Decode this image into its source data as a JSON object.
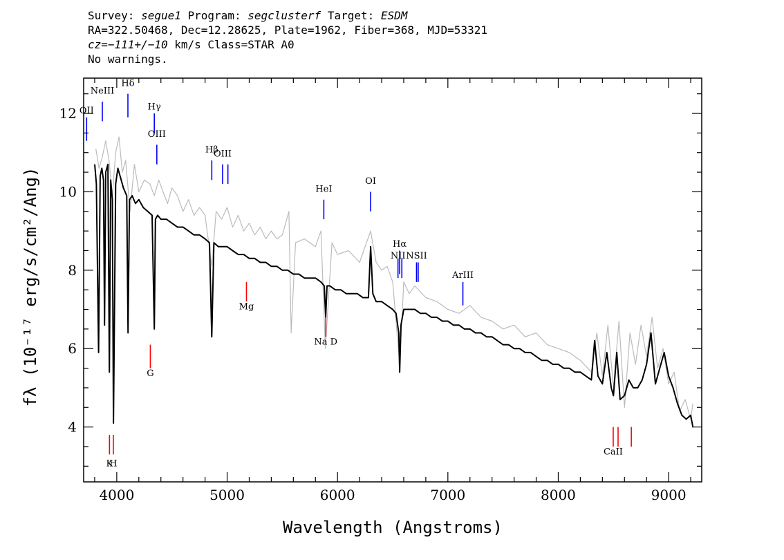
{
  "header": {
    "survey_label": "Survey:",
    "survey": "segue1",
    "program_label": "Program:",
    "program": "segclusterf",
    "target_label": "Target:",
    "target": "ESDM",
    "line2": "RA=322.50468, Dec=12.28625, Plate=1962, Fiber=368, MJD=53321",
    "cz_label": "cz=",
    "cz_value": "−111+/−10",
    "cz_unit_class": " km/s Class=STAR A0",
    "line4": "No warnings."
  },
  "chart_data": {
    "type": "line",
    "xlabel": "Wavelength (Angstroms)",
    "ylabel": "fλ (10⁻¹⁷ erg/s/cm²/Ang)",
    "xlim": [
      3700,
      9300
    ],
    "ylim": [
      2.6,
      12.9
    ],
    "xticks": [
      4000,
      5000,
      6000,
      7000,
      8000,
      9000
    ],
    "yticks": [
      4,
      6,
      8,
      10,
      12
    ],
    "series": [
      {
        "role": "noisy",
        "color": "#bbbbbb",
        "x": [
          3810,
          3840,
          3870,
          3900,
          3930,
          3960,
          3990,
          4020,
          4050,
          4080,
          4120,
          4160,
          4200,
          4250,
          4300,
          4340,
          4380,
          4420,
          4460,
          4500,
          4550,
          4600,
          4650,
          4700,
          4750,
          4800,
          4861,
          4900,
          4950,
          5000,
          5050,
          5100,
          5150,
          5200,
          5250,
          5300,
          5350,
          5400,
          5450,
          5500,
          5560,
          5580,
          5620,
          5700,
          5800,
          5850,
          5890,
          5950,
          6000,
          6100,
          6200,
          6300,
          6350,
          6400,
          6450,
          6500,
          6563,
          6600,
          6650,
          6700,
          6800,
          6900,
          7000,
          7100,
          7200,
          7300,
          7400,
          7500,
          7600,
          7700,
          7800,
          7900,
          8000,
          8100,
          8200,
          8300,
          8350,
          8400,
          8450,
          8500,
          8550,
          8600,
          8650,
          8700,
          8750,
          8800,
          8850,
          8900,
          8950,
          9000,
          9050,
          9100,
          9150,
          9200,
          9220
        ],
        "y": [
          11.1,
          10.6,
          10.9,
          11.3,
          10.8,
          9.9,
          11.0,
          11.4,
          10.5,
          10.8,
          9.5,
          10.7,
          10.0,
          10.3,
          10.2,
          9.9,
          10.3,
          10.0,
          9.7,
          10.1,
          9.9,
          9.5,
          9.8,
          9.4,
          9.6,
          9.4,
          8.1,
          9.5,
          9.3,
          9.6,
          9.1,
          9.4,
          9.0,
          9.2,
          8.9,
          9.1,
          8.8,
          9.0,
          8.8,
          8.9,
          9.5,
          6.4,
          8.7,
          8.8,
          8.6,
          9.0,
          6.0,
          8.7,
          8.4,
          8.5,
          8.2,
          9.0,
          8.2,
          8.0,
          8.1,
          7.7,
          5.6,
          7.7,
          7.4,
          7.6,
          7.3,
          7.2,
          7.0,
          6.9,
          7.1,
          6.8,
          6.7,
          6.5,
          6.6,
          6.3,
          6.4,
          6.1,
          6.0,
          5.9,
          5.7,
          5.4,
          6.4,
          5.3,
          6.6,
          5.0,
          6.7,
          4.5,
          6.4,
          5.6,
          6.6,
          5.8,
          6.8,
          5.5,
          6.0,
          5.1,
          5.4,
          4.4,
          4.7,
          4.2,
          4.6
        ]
      },
      {
        "role": "smooth",
        "color": "#000000",
        "x": [
          3800,
          3815,
          3835,
          3850,
          3865,
          3880,
          3889,
          3900,
          3920,
          3933,
          3945,
          3960,
          3970,
          3990,
          4010,
          4030,
          4060,
          4090,
          4102,
          4115,
          4140,
          4170,
          4200,
          4240,
          4280,
          4320,
          4340,
          4350,
          4370,
          4400,
          4450,
          4500,
          4550,
          4600,
          4650,
          4700,
          4750,
          4800,
          4840,
          4861,
          4880,
          4920,
          4960,
          5000,
          5050,
          5100,
          5150,
          5200,
          5250,
          5300,
          5350,
          5400,
          5450,
          5500,
          5550,
          5600,
          5650,
          5700,
          5750,
          5800,
          5850,
          5880,
          5893,
          5905,
          5930,
          5980,
          6030,
          6080,
          6130,
          6180,
          6230,
          6280,
          6300,
          6320,
          6350,
          6400,
          6450,
          6500,
          6530,
          6555,
          6563,
          6575,
          6600,
          6650,
          6700,
          6750,
          6800,
          6850,
          6900,
          6950,
          7000,
          7050,
          7100,
          7150,
          7200,
          7250,
          7300,
          7350,
          7400,
          7450,
          7500,
          7550,
          7600,
          7650,
          7700,
          7750,
          7800,
          7850,
          7900,
          7950,
          8000,
          8050,
          8100,
          8150,
          8200,
          8250,
          8300,
          8330,
          8360,
          8400,
          8440,
          8480,
          8500,
          8530,
          8560,
          8600,
          8640,
          8680,
          8720,
          8760,
          8800,
          8840,
          8880,
          8920,
          8960,
          9000,
          9040,
          9080,
          9120,
          9160,
          9200,
          9220
        ],
        "y": [
          10.7,
          10.2,
          5.9,
          10.4,
          10.6,
          10.3,
          6.6,
          10.5,
          10.7,
          5.4,
          10.3,
          9.8,
          4.1,
          10.2,
          10.6,
          10.4,
          10.1,
          9.9,
          6.4,
          9.8,
          9.9,
          9.7,
          9.8,
          9.6,
          9.5,
          9.4,
          6.5,
          9.3,
          9.4,
          9.3,
          9.3,
          9.2,
          9.1,
          9.1,
          9.0,
          8.9,
          8.9,
          8.8,
          8.7,
          6.3,
          8.7,
          8.6,
          8.6,
          8.6,
          8.5,
          8.4,
          8.4,
          8.3,
          8.3,
          8.2,
          8.2,
          8.1,
          8.1,
          8.0,
          8.0,
          7.9,
          7.9,
          7.8,
          7.8,
          7.8,
          7.7,
          7.6,
          6.8,
          7.6,
          7.6,
          7.5,
          7.5,
          7.4,
          7.4,
          7.4,
          7.3,
          7.3,
          8.6,
          7.4,
          7.2,
          7.2,
          7.1,
          7.0,
          6.9,
          6.4,
          5.4,
          6.6,
          7.0,
          7.0,
          7.0,
          6.9,
          6.9,
          6.8,
          6.8,
          6.7,
          6.7,
          6.6,
          6.6,
          6.5,
          6.5,
          6.4,
          6.4,
          6.3,
          6.3,
          6.2,
          6.1,
          6.1,
          6.0,
          6.0,
          5.9,
          5.9,
          5.8,
          5.7,
          5.7,
          5.6,
          5.6,
          5.5,
          5.5,
          5.4,
          5.4,
          5.3,
          5.2,
          6.2,
          5.3,
          5.1,
          5.9,
          5.0,
          4.8,
          5.9,
          4.7,
          4.8,
          5.2,
          5.0,
          5.0,
          5.2,
          5.6,
          6.4,
          5.1,
          5.5,
          5.9,
          5.3,
          5.0,
          4.6,
          4.3,
          4.2,
          4.3,
          4.0
        ]
      }
    ],
    "emission_lines": [
      {
        "label": "OII",
        "wave": 3727,
        "y_top": 11.9,
        "y_bot": 11.3,
        "label_y": 12.0
      },
      {
        "label": "NeIII",
        "wave": 3869,
        "y_top": 12.3,
        "y_bot": 11.8,
        "label_y": 12.5
      },
      {
        "label": "Hδ",
        "wave": 4101,
        "y_top": 12.5,
        "y_bot": 11.9,
        "label_y": 12.7
      },
      {
        "label": "Hγ",
        "wave": 4340,
        "y_top": 12.0,
        "y_bot": 11.5,
        "label_y": 12.1
      },
      {
        "label": "OIII",
        "wave": 4363,
        "y_top": 11.2,
        "y_bot": 10.7,
        "label_y": 11.4
      },
      {
        "label": "Hβ",
        "wave": 4861,
        "y_top": 10.8,
        "y_bot": 10.3,
        "label_y": 11.0
      },
      {
        "label": "OIII",
        "wave": 4959,
        "y_top": 10.7,
        "y_bot": 10.2,
        "label_y": 10.9
      },
      {
        "label": "",
        "wave": 5007,
        "y_top": 10.7,
        "y_bot": 10.2,
        "label_y": 10.9
      },
      {
        "label": "HeI",
        "wave": 5876,
        "y_top": 9.8,
        "y_bot": 9.3,
        "label_y": 10.0
      },
      {
        "label": "OI",
        "wave": 6300,
        "y_top": 10.0,
        "y_bot": 9.5,
        "label_y": 10.2
      },
      {
        "label": "NII",
        "wave": 6548,
        "y_top": 8.3,
        "y_bot": 7.8,
        "label_y": 8.3
      },
      {
        "label": "Hα",
        "wave": 6563,
        "y_top": 8.5,
        "y_bot": 7.9,
        "label_y": 8.6
      },
      {
        "label": "",
        "wave": 6583,
        "y_top": 8.3,
        "y_bot": 7.8,
        "label_y": 8.3
      },
      {
        "label": "NSII",
        "wave": 6716,
        "y_top": 8.2,
        "y_bot": 7.7,
        "label_y": 8.3
      },
      {
        "label": "",
        "wave": 6731,
        "y_top": 8.2,
        "y_bot": 7.7,
        "label_y": 8.3
      },
      {
        "label": "ArIII",
        "wave": 7136,
        "y_top": 7.7,
        "y_bot": 7.1,
        "label_y": 7.8
      }
    ],
    "absorption_lines": [
      {
        "label": "K",
        "wave": 3934,
        "y_top": 3.8,
        "y_bot": 3.3,
        "label_y": 3.0
      },
      {
        "label": "H",
        "wave": 3969,
        "y_top": 3.8,
        "y_bot": 3.3,
        "label_y": 3.0
      },
      {
        "label": "G",
        "wave": 4304,
        "y_top": 6.1,
        "y_bot": 5.5,
        "label_y": 5.3
      },
      {
        "label": "Mg",
        "wave": 5175,
        "y_top": 7.7,
        "y_bot": 7.2,
        "label_y": 7.0
      },
      {
        "label": "Na  D",
        "wave": 5894,
        "y_top": 6.8,
        "y_bot": 6.3,
        "label_y": 6.1
      },
      {
        "label": "CaII",
        "wave": 8498,
        "y_top": 4.0,
        "y_bot": 3.5,
        "label_y": 3.3
      },
      {
        "label": "",
        "wave": 8542,
        "y_top": 4.0,
        "y_bot": 3.5,
        "label_y": 3.3
      },
      {
        "label": "",
        "wave": 8662,
        "y_top": 4.0,
        "y_bot": 3.5,
        "label_y": 3.3
      }
    ],
    "emission_color": "#0000ff",
    "absorption_color": "#ff0000"
  }
}
